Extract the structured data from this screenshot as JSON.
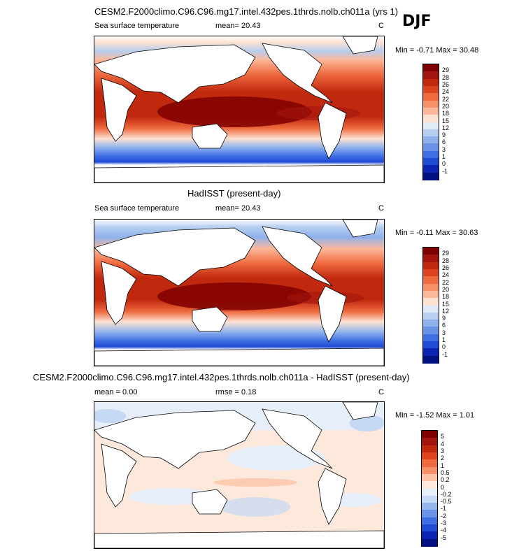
{
  "season": "DJF",
  "panels": [
    {
      "title": "CESM2.F2000climo.C96.C96.mg17.intel.432pes.1thrds.nolb.ch011a (yrs 1)",
      "left_label": "Sea surface temperature",
      "stat_label": "mean=  20.43",
      "units": "C",
      "minmax": "Min =  -0.71 Max =  30.48",
      "colorbar": {
        "labels": [
          "29",
          "28",
          "26",
          "24",
          "22",
          "20",
          "18",
          "15",
          "12",
          "9",
          "6",
          "3",
          "1",
          "0",
          "-1"
        ],
        "colors": [
          "#7f0000",
          "#a3150e",
          "#c1290f",
          "#dc431e",
          "#ef6a3f",
          "#f8906a",
          "#fcb89a",
          "#fde2d2",
          "#e1ebf8",
          "#b7cff0",
          "#8eb2ec",
          "#6a93e8",
          "#3e6ee4",
          "#1f4bd6",
          "#0c24b4",
          "#001080"
        ]
      }
    },
    {
      "title": "HadISST (present-day)",
      "left_label": "Sea surface temperature",
      "stat_label": "mean=  20.43",
      "units": "C",
      "minmax": "Min =  -0.11 Max =  30.63",
      "colorbar": {
        "labels": [
          "29",
          "28",
          "26",
          "24",
          "22",
          "20",
          "18",
          "15",
          "12",
          "9",
          "6",
          "3",
          "1",
          "0",
          "-1"
        ],
        "colors": [
          "#7f0000",
          "#a3150e",
          "#c1290f",
          "#dc431e",
          "#ef6a3f",
          "#f8906a",
          "#fcb89a",
          "#fde2d2",
          "#e1ebf8",
          "#b7cff0",
          "#8eb2ec",
          "#6a93e8",
          "#3e6ee4",
          "#1f4bd6",
          "#0c24b4",
          "#001080"
        ]
      }
    },
    {
      "title": "CESM2.F2000climo.C96.C96.mg17.intel.432pes.1thrds.nolb.ch011a - HadISST (present-day)",
      "left_label": "mean =   0.00",
      "stat_label": "rmse =   0.18",
      "units": "C",
      "minmax": "Min =  -1.52 Max =   1.01",
      "colorbar": {
        "labels": [
          "5",
          "4",
          "3",
          "2",
          "1",
          "0.5",
          "0.2",
          "0",
          "-0.2",
          "-0.5",
          "-1",
          "-2",
          "-3",
          "-4",
          "-5"
        ],
        "colors": [
          "#7f0000",
          "#a3150e",
          "#c1290f",
          "#dc431e",
          "#ef6a3f",
          "#f8906a",
          "#fcc3a8",
          "#fde8dc",
          "#e6eefa",
          "#c5d8f4",
          "#93b5ee",
          "#6a93e8",
          "#3e6ee4",
          "#1f4bd6",
          "#0c24b4",
          "#001080"
        ]
      }
    }
  ]
}
